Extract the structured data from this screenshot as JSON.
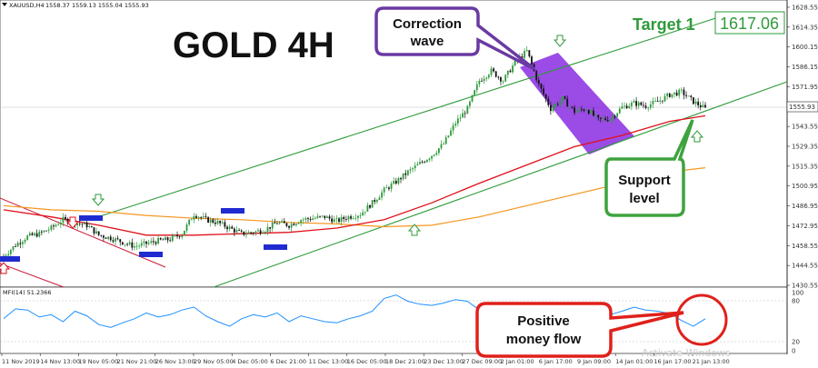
{
  "header": {
    "symbol": "XAUUSD,H4",
    "ohlc": "1558.37 1559.13 1555.04 1555.93",
    "indicator_label": "MFI(14) 51.2366"
  },
  "annotations": {
    "title": "GOLD 4H",
    "target_label": "Target 1",
    "target_value": "1617.06",
    "correction_line1": "Correction",
    "correction_line2": "wave",
    "support_line1": "Support",
    "support_line2": "level",
    "money_line1": "Positive",
    "money_line2": "money flow",
    "watermark": "Activate Windows"
  },
  "colors": {
    "bull_candle": "#2e9b3a",
    "bear_candle": "#111111",
    "ma_red": "#e0101a",
    "ma_orange": "#f5961e",
    "channel_green": "#2e9b3a",
    "resistance_red": "#cc1a3a",
    "correction_fill": "#8a2be2",
    "mfi_line": "#1e90ff",
    "callout_purple": "#6a3aa2",
    "callout_green": "#3ea33e",
    "callout_red": "#e0201a"
  },
  "chart_data": {
    "type": "candlestick",
    "price_axis": {
      "ticks": [
        "1628.55",
        "1614.35",
        "1600.15",
        "1586.15",
        "1571.95",
        "1557.75",
        "1543.55",
        "1529.35",
        "1515.35",
        "1500.95",
        "1486.95",
        "1472.95",
        "1458.55",
        "1444.55",
        "1430.55"
      ],
      "current_price": "1555.93",
      "ylim": [
        1430.55,
        1628.55
      ]
    },
    "mfi_axis": {
      "ticks": [
        "100",
        "80",
        "20",
        "0"
      ],
      "ylim": [
        0,
        100
      ]
    },
    "time_axis": {
      "labels": [
        "11 Nov 2019",
        "14 Nov 13:00",
        "19 Nov 05:00",
        "21 Nov 21:00",
        "26 Nov 13:00",
        "29 Nov 05:00",
        "4 Dec 05:00",
        "6 Dec 21:00",
        "11 Dec 13:00",
        "16 Dec 05:00",
        "18 Dec 21:00",
        "23 Dec 13:00",
        "27 Dec 09:00",
        "2 Jan 01:00",
        "6 Jan 17:00",
        "9 Jan 09:00",
        "14 Jan 01:00",
        "16 Jan 17:00",
        "21 Jan 13:00"
      ]
    },
    "price_path": [
      [
        0,
        1450
      ],
      [
        5,
        1458
      ],
      [
        10,
        1464
      ],
      [
        15,
        1466
      ],
      [
        20,
        1470
      ],
      [
        25,
        1476
      ],
      [
        30,
        1474
      ],
      [
        35,
        1472
      ],
      [
        40,
        1465
      ],
      [
        45,
        1463
      ],
      [
        50,
        1460
      ],
      [
        55,
        1457
      ],
      [
        60,
        1459
      ],
      [
        65,
        1461
      ],
      [
        70,
        1462
      ],
      [
        75,
        1466
      ],
      [
        80,
        1480
      ],
      [
        85,
        1476
      ],
      [
        90,
        1474
      ],
      [
        95,
        1470
      ],
      [
        100,
        1466
      ],
      [
        105,
        1467
      ],
      [
        110,
        1469
      ],
      [
        115,
        1474
      ],
      [
        120,
        1472
      ],
      [
        125,
        1476
      ],
      [
        130,
        1477
      ],
      [
        135,
        1478
      ],
      [
        140,
        1475
      ],
      [
        145,
        1478
      ],
      [
        150,
        1480
      ],
      [
        155,
        1488
      ],
      [
        160,
        1497
      ],
      [
        165,
        1503
      ],
      [
        170,
        1510
      ],
      [
        175,
        1516
      ],
      [
        180,
        1522
      ],
      [
        185,
        1530
      ],
      [
        190,
        1545
      ],
      [
        195,
        1555
      ],
      [
        200,
        1575
      ],
      [
        205,
        1582
      ],
      [
        210,
        1575
      ],
      [
        215,
        1588
      ],
      [
        220,
        1596
      ],
      [
        225,
        1572
      ],
      [
        230,
        1555
      ],
      [
        235,
        1562
      ],
      [
        240,
        1553
      ],
      [
        245,
        1555
      ],
      [
        250,
        1547
      ],
      [
        255,
        1548
      ],
      [
        260,
        1556
      ],
      [
        265,
        1559
      ],
      [
        270,
        1557
      ],
      [
        275,
        1560
      ],
      [
        280,
        1565
      ],
      [
        285,
        1567
      ],
      [
        290,
        1560
      ],
      [
        295,
        1555
      ]
    ],
    "ma_red_path": [
      [
        0,
        1483
      ],
      [
        20,
        1478
      ],
      [
        40,
        1472
      ],
      [
        60,
        1465
      ],
      [
        80,
        1465
      ],
      [
        100,
        1466
      ],
      [
        120,
        1467
      ],
      [
        140,
        1470
      ],
      [
        160,
        1476
      ],
      [
        180,
        1488
      ],
      [
        200,
        1502
      ],
      [
        220,
        1515
      ],
      [
        240,
        1528
      ],
      [
        260,
        1536
      ],
      [
        280,
        1546
      ],
      [
        295,
        1550
      ]
    ],
    "ma_orange_path": [
      [
        0,
        1486
      ],
      [
        20,
        1483
      ],
      [
        40,
        1482
      ],
      [
        60,
        1479
      ],
      [
        80,
        1477
      ],
      [
        100,
        1476
      ],
      [
        120,
        1474
      ],
      [
        140,
        1473
      ],
      [
        160,
        1471
      ],
      [
        180,
        1472
      ],
      [
        200,
        1478
      ],
      [
        220,
        1486
      ],
      [
        240,
        1494
      ],
      [
        260,
        1502
      ],
      [
        280,
        1510
      ],
      [
        295,
        1513
      ]
    ],
    "mfi_path": [
      [
        0,
        55
      ],
      [
        5,
        72
      ],
      [
        10,
        70
      ],
      [
        15,
        58
      ],
      [
        20,
        62
      ],
      [
        25,
        50
      ],
      [
        30,
        68
      ],
      [
        35,
        60
      ],
      [
        40,
        45
      ],
      [
        45,
        40
      ],
      [
        50,
        48
      ],
      [
        55,
        55
      ],
      [
        60,
        65
      ],
      [
        65,
        58
      ],
      [
        70,
        62
      ],
      [
        75,
        70
      ],
      [
        80,
        75
      ],
      [
        85,
        60
      ],
      [
        90,
        50
      ],
      [
        95,
        42
      ],
      [
        100,
        55
      ],
      [
        105,
        62
      ],
      [
        110,
        58
      ],
      [
        115,
        65
      ],
      [
        120,
        50
      ],
      [
        125,
        60
      ],
      [
        130,
        55
      ],
      [
        135,
        50
      ],
      [
        140,
        48
      ],
      [
        145,
        55
      ],
      [
        150,
        60
      ],
      [
        155,
        68
      ],
      [
        160,
        90
      ],
      [
        165,
        96
      ],
      [
        170,
        85
      ],
      [
        175,
        80
      ],
      [
        180,
        78
      ],
      [
        185,
        82
      ],
      [
        190,
        88
      ],
      [
        195,
        85
      ],
      [
        200,
        70
      ],
      [
        205,
        78
      ],
      [
        210,
        55
      ],
      [
        215,
        65
      ],
      [
        220,
        62
      ],
      [
        225,
        48
      ],
      [
        230,
        45
      ],
      [
        235,
        50
      ],
      [
        240,
        52
      ],
      [
        245,
        47
      ],
      [
        250,
        55
      ],
      [
        255,
        62
      ],
      [
        260,
        68
      ],
      [
        265,
        75
      ],
      [
        270,
        70
      ],
      [
        275,
        68
      ],
      [
        280,
        64
      ],
      [
        285,
        52
      ],
      [
        290,
        42
      ],
      [
        295,
        55
      ]
    ]
  }
}
